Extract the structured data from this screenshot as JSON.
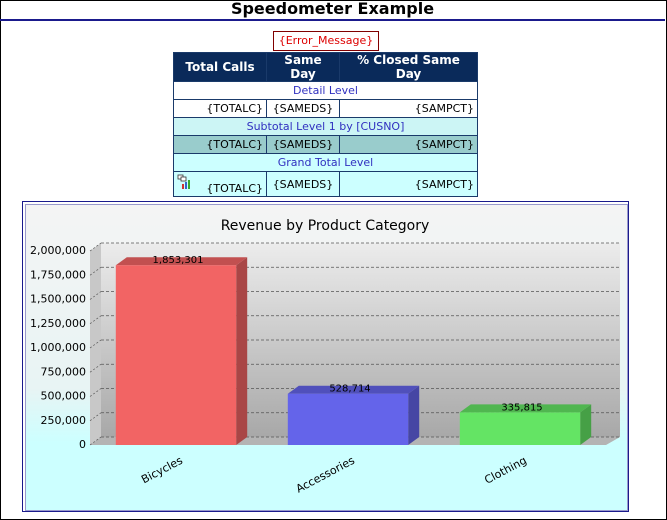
{
  "header": {
    "title": "Speedometer Example",
    "error": "{Error_Message}"
  },
  "table": {
    "columns": [
      "Total Calls",
      "Same Day",
      "% Closed Same Day"
    ],
    "sections": [
      {
        "label": "Detail Level",
        "row": [
          "{TOTALC}",
          "{SAMEDS}",
          "{SAMPCT}"
        ]
      },
      {
        "label": "Subtotal Level 1 by [CUSNO]",
        "row": [
          "{TOTALC}",
          "{SAMEDS}",
          "{SAMPCT}"
        ]
      },
      {
        "label": "Grand Total Level",
        "row": [
          "{TOTALC}",
          "{SAMEDS}",
          "{SAMPCT}"
        ]
      }
    ]
  },
  "chart_data": {
    "type": "bar",
    "title": "Revenue by Product Category",
    "categories": [
      "Bicycles",
      "Accessories",
      "Clothing"
    ],
    "values": [
      1853301,
      528714,
      335815
    ],
    "value_labels": [
      "1,853,301",
      "528,714",
      "335,815"
    ],
    "colors": [
      "#f26464",
      "#6464ea",
      "#64e464"
    ],
    "ylim": [
      0,
      2000000
    ],
    "yticks": [
      {
        "value": 0,
        "label": "0"
      },
      {
        "value": 250000,
        "label": "250,000"
      },
      {
        "value": 500000,
        "label": "500,000"
      },
      {
        "value": 750000,
        "label": "750,000"
      },
      {
        "value": 1000000,
        "label": "1,000,000"
      },
      {
        "value": 1250000,
        "label": "1,250,000"
      },
      {
        "value": 1500000,
        "label": "1,500,000"
      },
      {
        "value": 1750000,
        "label": "1,750,000"
      },
      {
        "value": 2000000,
        "label": "2,000,000"
      }
    ],
    "grid": true
  }
}
